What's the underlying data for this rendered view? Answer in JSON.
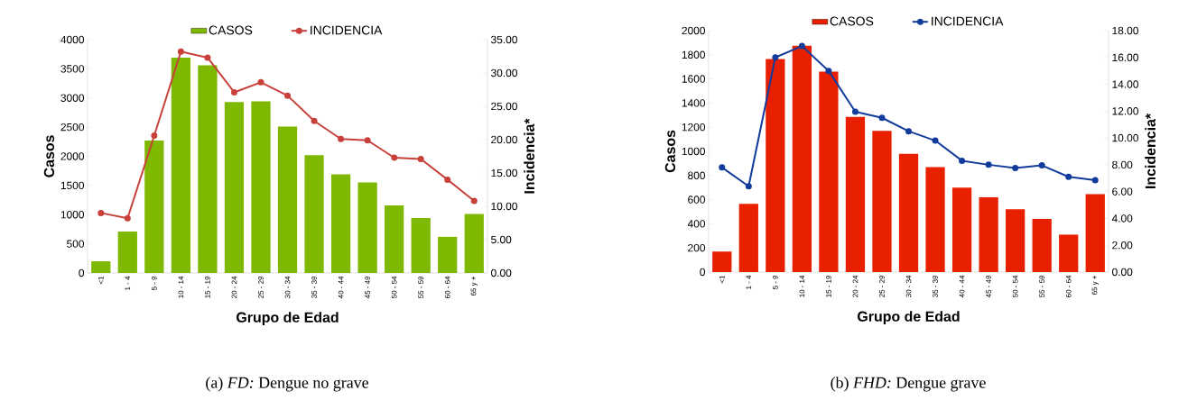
{
  "chart_data": [
    {
      "type": "bar",
      "xlabel": "Grupo de Edad",
      "ylabel": "Casos",
      "y2label": "Incidencia*",
      "categories": [
        "<1",
        "1 - 4",
        "5 - 9",
        "10 - 14",
        "15 - 19",
        "20 - 24",
        "25 - 29",
        "30 - 34",
        "35 - 39",
        "40 - 44",
        "45 - 49",
        "50 - 54",
        "55 - 59",
        "60 - 64",
        "65 y +"
      ],
      "series": [
        {
          "name": "CASOS",
          "color": "#7fb800",
          "values": [
            200,
            710,
            2270,
            3690,
            3560,
            2930,
            2940,
            2510,
            2020,
            1690,
            1550,
            1160,
            940,
            620,
            1010
          ]
        },
        {
          "name": "INCIDENCIA",
          "type": "line",
          "axis": "y2",
          "marker": "circle",
          "color": "#c8403a",
          "values": [
            9.0,
            8.2,
            20.6,
            33.2,
            32.3,
            27.1,
            28.6,
            26.6,
            22.8,
            20.1,
            19.9,
            17.3,
            17.1,
            14.0,
            10.8
          ]
        }
      ],
      "ylim": [
        0,
        4000
      ],
      "yticks": [
        0,
        500,
        1000,
        1500,
        2000,
        2500,
        3000,
        3500,
        4000
      ],
      "y2lim": [
        0,
        35
      ],
      "y2ticks": [
        {
          "value": 0,
          "label": "0.00"
        },
        {
          "value": 5,
          "label": "5.00"
        },
        {
          "value": 10,
          "label": "10.00"
        },
        {
          "value": 15,
          "label": "15.00"
        },
        {
          "value": 20,
          "label": "20.00"
        },
        {
          "value": 25,
          "label": "25.00"
        },
        {
          "value": 30,
          "label": "30.00"
        },
        {
          "value": 35,
          "label": "35.00"
        }
      ],
      "legend": "top",
      "annotations": [
        "(a) *FD:* Dengue no grave"
      ]
    },
    {
      "type": "bar",
      "xlabel": "Grupo de Edad",
      "ylabel": "Casos",
      "y2label": "Incidencia*",
      "categories": [
        "<1",
        "1 - 4",
        "5 - 9",
        "10 - 14",
        "15 - 19",
        "20 - 24",
        "25 - 29",
        "30 - 34",
        "35 - 39",
        "40 - 44",
        "45 - 49",
        "50 - 54",
        "55 - 59",
        "60 - 64",
        "65 y +"
      ],
      "series": [
        {
          "name": "CASOS",
          "color": "#e82000",
          "values": [
            170,
            565,
            1765,
            1875,
            1660,
            1285,
            1170,
            980,
            870,
            700,
            620,
            520,
            440,
            310,
            645
          ]
        },
        {
          "name": "INCIDENCIA",
          "type": "line",
          "axis": "y2",
          "marker": "circle",
          "color": "#123c9c",
          "values": [
            7.8,
            6.4,
            16.0,
            16.85,
            15.0,
            11.95,
            11.5,
            10.5,
            9.8,
            8.3,
            8.0,
            7.75,
            7.95,
            7.1,
            6.85
          ]
        }
      ],
      "ylim": [
        0,
        2000
      ],
      "yticks": [
        0,
        200,
        400,
        600,
        800,
        1000,
        1200,
        1400,
        1600,
        1800,
        2000
      ],
      "y2lim": [
        0,
        18
      ],
      "y2ticks": [
        {
          "value": 0,
          "label": "0.00"
        },
        {
          "value": 2,
          "label": "2.00"
        },
        {
          "value": 4,
          "label": "4.00"
        },
        {
          "value": 6,
          "label": "6.00"
        },
        {
          "value": 8,
          "label": "8.00"
        },
        {
          "value": 10,
          "label": "10.00"
        },
        {
          "value": 12,
          "label": "12.00"
        },
        {
          "value": 14,
          "label": "14.00"
        },
        {
          "value": 16,
          "label": "16.00"
        },
        {
          "value": 18,
          "label": "18.00"
        }
      ],
      "legend": "top",
      "annotations": [
        "(b) *FHD:* Dengue grave"
      ]
    }
  ]
}
